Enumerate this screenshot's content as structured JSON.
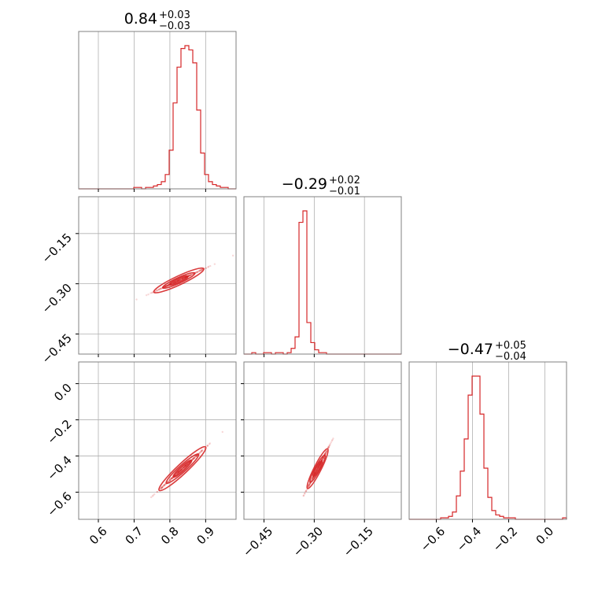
{
  "chart_data": {
    "type": "corner",
    "color": "#d62728",
    "grid": true,
    "parameters": [
      {
        "title": {
          "value": "0.84",
          "plus": "+0.03",
          "minus": "−0.03"
        },
        "range": [
          0.545,
          0.985
        ],
        "ticks": [
          0.6,
          0.7,
          0.8,
          0.9
        ],
        "tick_labels": [
          "0.6",
          "0.7",
          "0.8",
          "0.9"
        ]
      },
      {
        "title": {
          "value": "−0.29",
          "plus": "+0.02",
          "minus": "−0.01"
        },
        "range": [
          -0.51,
          -0.04
        ],
        "ticks": [
          -0.45,
          -0.3,
          -0.15
        ],
        "tick_labels": [
          "−0.45",
          "−0.30",
          "−0.15"
        ]
      },
      {
        "title": {
          "value": "−0.47",
          "plus": "+0.05",
          "minus": "−0.04"
        },
        "range": [
          -0.75,
          0.12
        ],
        "ticks": [
          -0.6,
          -0.4,
          -0.2,
          0.0
        ],
        "tick_labels": [
          "−0.6",
          "−0.4",
          "−0.2",
          "0.0"
        ]
      }
    ],
    "histograms": [
      {
        "param": 0,
        "bin_edges_start": 0.545,
        "bin_width": 0.011,
        "counts": [
          0,
          0,
          0,
          0,
          0,
          0,
          0,
          0,
          0,
          0,
          0,
          0,
          0,
          0,
          1,
          1,
          0,
          1,
          1,
          2,
          3,
          5,
          10,
          27,
          60,
          85,
          98,
          100,
          97,
          88,
          55,
          25,
          10,
          5,
          3,
          2,
          1,
          1,
          0,
          0
        ]
      },
      {
        "param": 1,
        "bin_edges_start": -0.51,
        "bin_width": 0.01175,
        "counts": [
          0,
          0,
          1,
          0,
          0,
          1,
          1,
          0,
          1,
          1,
          0,
          1,
          4,
          12,
          92,
          100,
          22,
          8,
          3,
          1,
          1,
          0,
          0,
          0,
          0,
          0,
          0,
          0,
          0,
          0,
          0,
          0,
          0,
          0,
          0,
          0,
          0,
          0,
          0,
          0
        ]
      },
      {
        "param": 2,
        "bin_edges_start": -0.75,
        "bin_width": 0.02175,
        "counts": [
          0,
          0,
          0,
          0,
          0,
          0,
          0,
          0,
          1,
          1,
          2,
          5,
          16,
          33,
          55,
          85,
          98,
          98,
          72,
          35,
          15,
          6,
          3,
          2,
          1,
          1,
          1,
          0,
          0,
          0,
          0,
          0,
          0,
          0,
          0,
          0,
          0,
          0,
          0,
          1
        ]
      }
    ],
    "joint_2d": [
      {
        "x_param": 0,
        "y_param": 1,
        "center": [
          0.825,
          -0.29
        ],
        "ellipses": [
          [
            0.025,
            0.012
          ],
          [
            0.045,
            0.022
          ],
          [
            0.07,
            0.035
          ]
        ]
      },
      {
        "x_param": 0,
        "y_param": 2,
        "center": [
          0.835,
          -0.47
        ],
        "ellipses": [
          [
            0.025,
            0.045
          ],
          [
            0.045,
            0.08
          ],
          [
            0.065,
            0.12
          ]
        ]
      },
      {
        "x_param": 1,
        "y_param": 2,
        "center": [
          -0.29,
          -0.47
        ],
        "ellipses": [
          [
            0.012,
            0.04
          ],
          [
            0.022,
            0.075
          ],
          [
            0.03,
            0.11
          ]
        ]
      }
    ]
  }
}
